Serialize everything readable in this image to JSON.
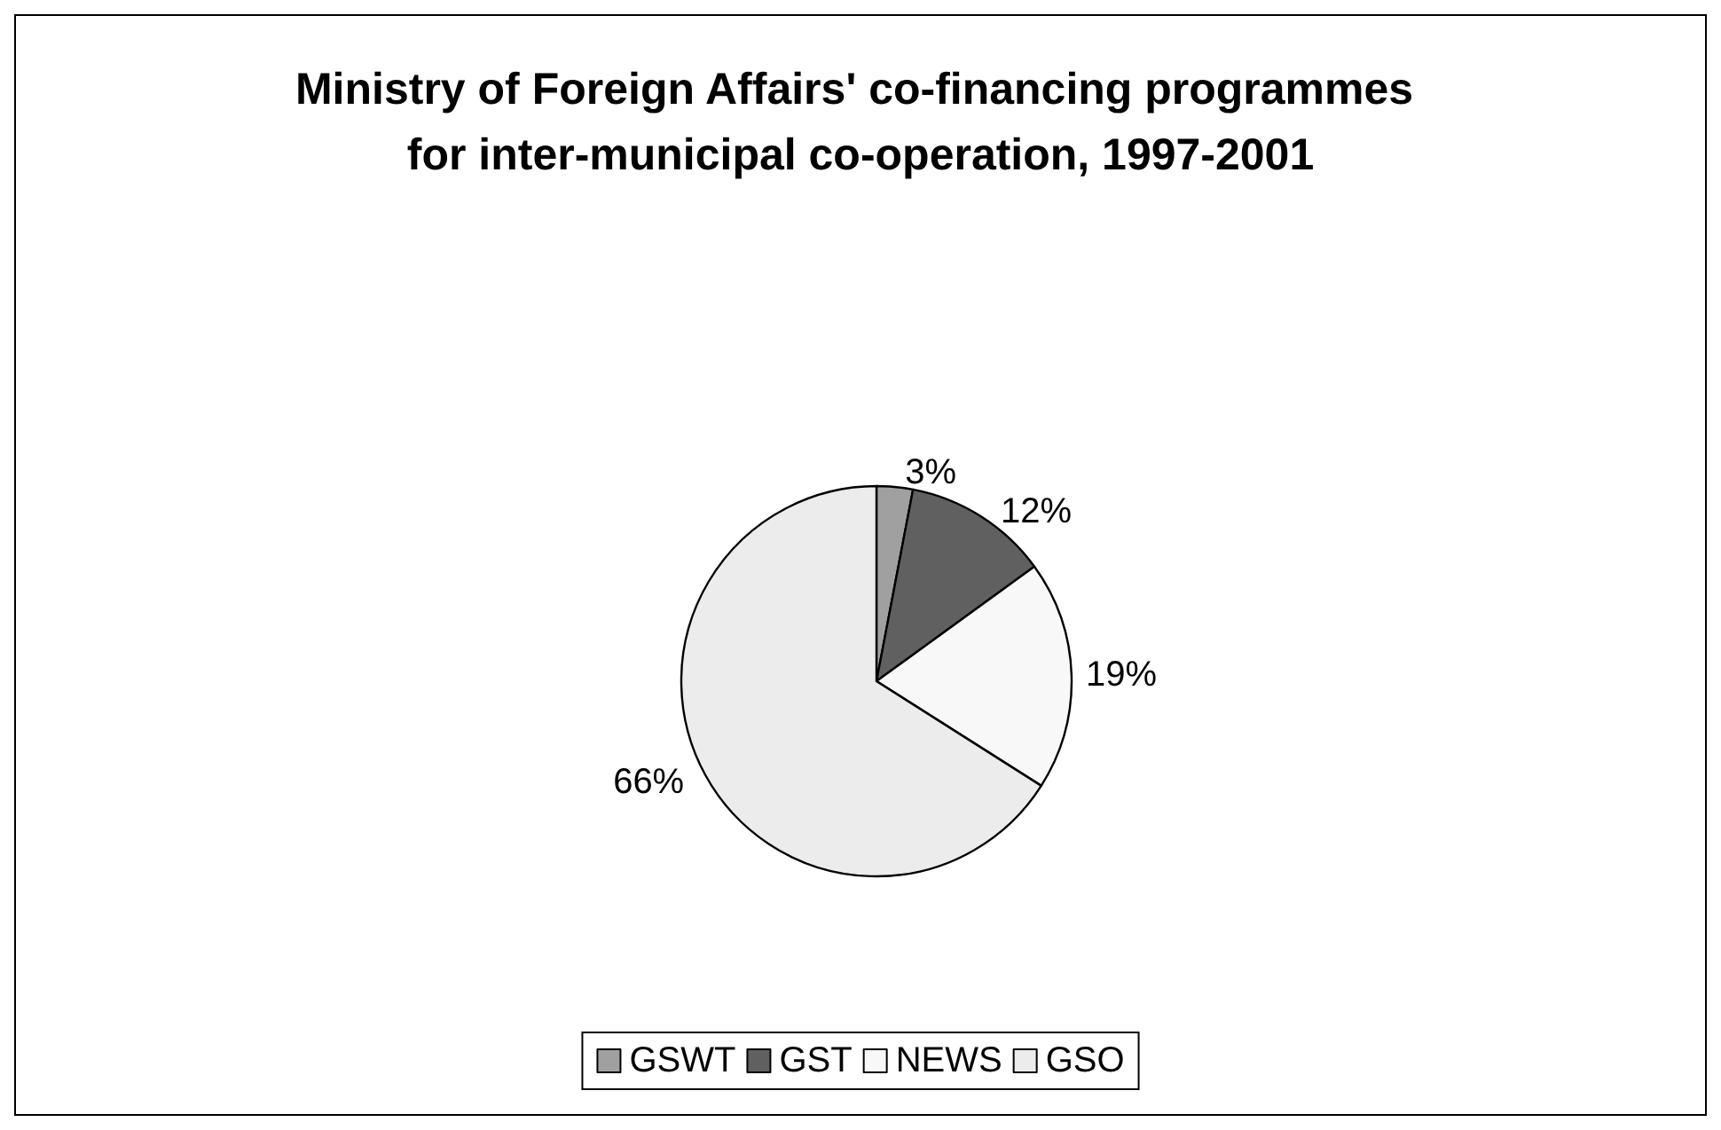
{
  "chart_data": {
    "type": "pie",
    "title": "Ministry of Foreign Affairs' co-financing programmes for inter-municipal co-operation, 1997-2001",
    "categories": [
      "GSWT",
      "GST",
      "NEWS",
      "GSO"
    ],
    "values": [
      3,
      12,
      19,
      66
    ],
    "colors": [
      "#a0a0a0",
      "#606060",
      "#f8f8f8",
      "#ececec"
    ],
    "value_labels": [
      "3%",
      "12%",
      "19%",
      "66%"
    ],
    "legend": "bottom"
  }
}
